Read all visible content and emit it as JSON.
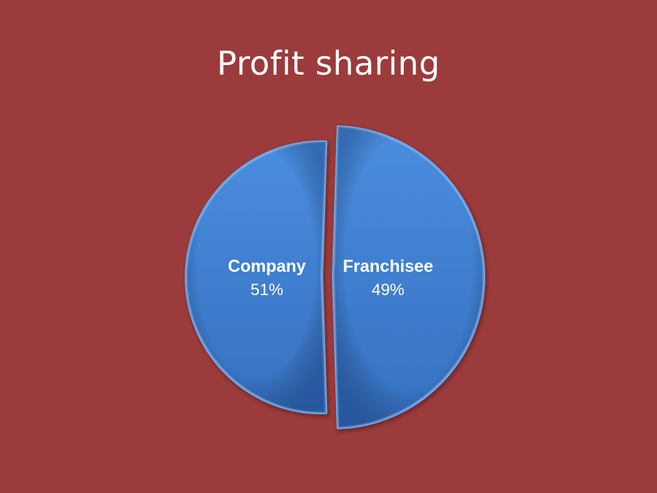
{
  "slide": {
    "title": "Profit sharing"
  },
  "colors": {
    "background": "#9b3b3b",
    "slice_fill": "#3f7ed1",
    "slice_stroke": "#6fa7e8",
    "label": "#ffffff"
  },
  "chart_data": {
    "type": "pie",
    "categories": [
      "Company",
      "Franchisee"
    ],
    "values": [
      51,
      49
    ],
    "value_labels": [
      "51%",
      "49%"
    ],
    "title": "Profit sharing",
    "legend": "none",
    "exploded": "Franchisee"
  }
}
